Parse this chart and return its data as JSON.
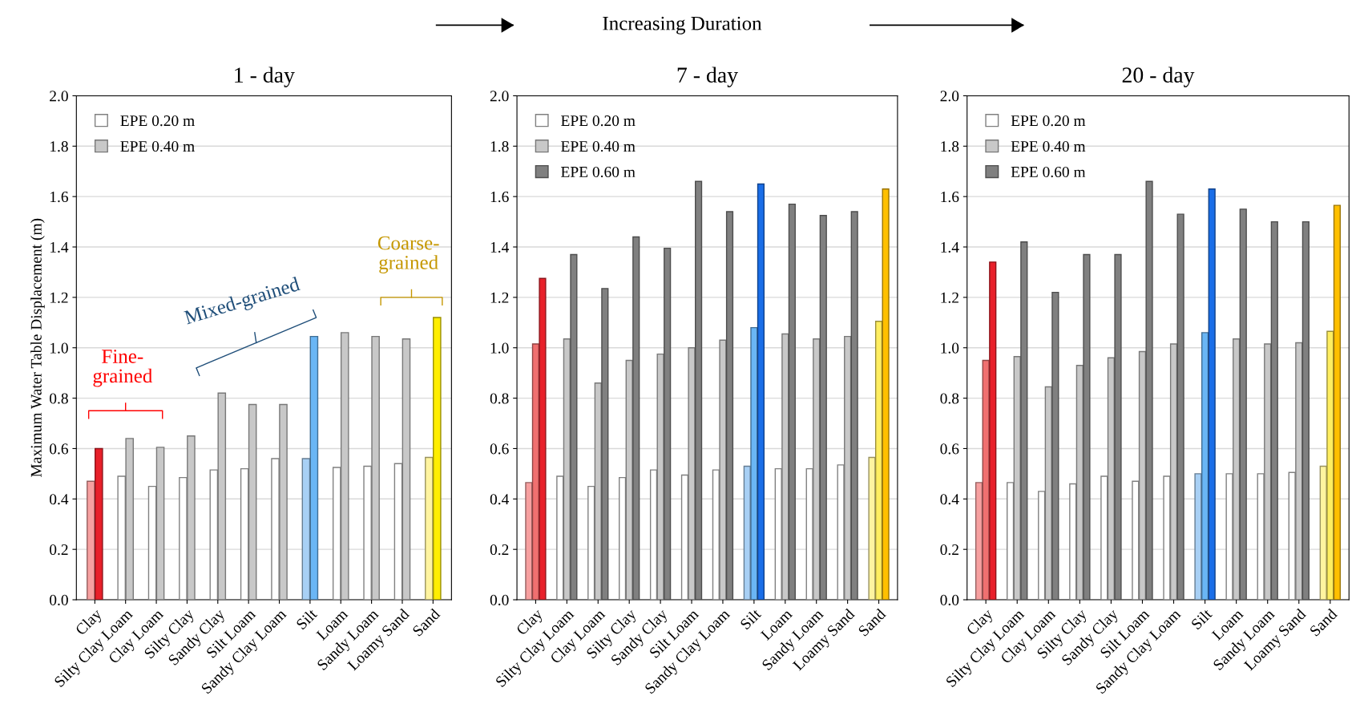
{
  "chart_data": [
    {
      "type": "bar",
      "title": "1 - day",
      "ylabel": "Maximum Water Table Displacement (m)",
      "annotations": [
        "Increasing Duration",
        "Fine-\ngrained",
        "Mixed-grained",
        "Coarse-\ngrained"
      ],
      "categories": [
        "Clay",
        "Silty Clay Loam",
        "Clay Loam",
        "Silty Clay",
        "Sandy Clay",
        "Silt Loam",
        "Sandy Clay Loam",
        "Silt",
        "Loam",
        "Sandy Loam",
        "Loamy Sand",
        "Sand"
      ],
      "series": [
        {
          "name": "EPE 0.20 m",
          "color": "#ffffff",
          "colors": [
            "#f7a0a0",
            "#ffffff",
            "#ffffff",
            "#ffffff",
            "#ffffff",
            "#ffffff",
            "#ffffff",
            "#a8d0f5",
            "#ffffff",
            "#ffffff",
            "#ffffff",
            "#fff4a0"
          ],
          "values": [
            0.47,
            0.49,
            0.45,
            0.485,
            0.515,
            0.52,
            0.56,
            0.56,
            0.525,
            0.53,
            0.54,
            0.565
          ]
        },
        {
          "name": "EPE 0.40 m",
          "color": "#c8c8c8",
          "colors": [
            "#e8202a",
            "#c8c8c8",
            "#c8c8c8",
            "#c8c8c8",
            "#c8c8c8",
            "#c8c8c8",
            "#c8c8c8",
            "#6ab6f5",
            "#c8c8c8",
            "#c8c8c8",
            "#c8c8c8",
            "#ffee00"
          ],
          "values": [
            0.6,
            0.64,
            0.605,
            0.65,
            0.82,
            0.775,
            0.775,
            1.045,
            1.06,
            1.045,
            1.035,
            1.12
          ]
        }
      ],
      "ylim": [
        0,
        2.0
      ],
      "yticks": [
        {
          "value": 0,
          "label": "0.0"
        },
        0.2,
        0.4,
        0.6,
        0.8,
        {
          "value": 1,
          "label": "1.0"
        },
        1.2,
        1.4,
        1.6,
        1.8,
        {
          "value": 2,
          "label": "2.0"
        }
      ],
      "grid": "y",
      "legend": "top left"
    },
    {
      "type": "bar",
      "title": "7 - day",
      "categories": [
        "Clay",
        "Silty Clay Loam",
        "Clay Loam",
        "Silty Clay",
        "Sandy Clay",
        "Silt Loam",
        "Sandy Clay Loam",
        "Silt",
        "Loam",
        "Sandy Loam",
        "Loamy Sand",
        "Sand"
      ],
      "series": [
        {
          "name": "EPE 0.20 m",
          "color": "#ffffff",
          "colors": [
            "#f7a0a0",
            "#ffffff",
            "#ffffff",
            "#ffffff",
            "#ffffff",
            "#ffffff",
            "#ffffff",
            "#a8d0f5",
            "#ffffff",
            "#ffffff",
            "#ffffff",
            "#fff4a0"
          ],
          "values": [
            0.465,
            0.49,
            0.45,
            0.485,
            0.515,
            0.495,
            0.515,
            0.53,
            0.52,
            0.52,
            0.535,
            0.565
          ]
        },
        {
          "name": "EPE 0.40 m",
          "color": "#c8c8c8",
          "colors": [
            "#f07070",
            "#c8c8c8",
            "#c8c8c8",
            "#c8c8c8",
            "#c8c8c8",
            "#c8c8c8",
            "#c8c8c8",
            "#6ab6f5",
            "#c8c8c8",
            "#c8c8c8",
            "#c8c8c8",
            "#ffee60"
          ],
          "values": [
            1.015,
            1.035,
            0.86,
            0.95,
            0.975,
            1.0,
            1.03,
            1.08,
            1.055,
            1.035,
            1.045,
            1.105
          ]
        },
        {
          "name": "EPE 0.60 m",
          "color": "#808080",
          "colors": [
            "#e8202a",
            "#808080",
            "#808080",
            "#808080",
            "#808080",
            "#808080",
            "#808080",
            "#1a6ee8",
            "#808080",
            "#808080",
            "#808080",
            "#ffc000"
          ],
          "values": [
            1.275,
            1.37,
            1.235,
            1.44,
            1.395,
            1.66,
            1.54,
            1.65,
            1.57,
            1.525,
            1.54,
            1.63
          ]
        }
      ],
      "ylim": [
        0,
        2.0
      ],
      "yticks": [
        {
          "value": 0,
          "label": "0.0"
        },
        0.2,
        0.4,
        0.6,
        0.8,
        {
          "value": 1,
          "label": "1.0"
        },
        1.2,
        1.4,
        1.6,
        1.8,
        {
          "value": 2,
          "label": "2.0"
        }
      ],
      "grid": "y",
      "legend": "top left"
    },
    {
      "type": "bar",
      "title": "20 - day",
      "categories": [
        "Clay",
        "Silty Clay Loam",
        "Clay Loam",
        "Silty Clay",
        "Sandy Clay",
        "Silt Loam",
        "Sandy Clay Loam",
        "Silt",
        "Loam",
        "Sandy Loam",
        "Loamy Sand",
        "Sand"
      ],
      "series": [
        {
          "name": "EPE 0.20 m",
          "color": "#ffffff",
          "colors": [
            "#f7a0a0",
            "#ffffff",
            "#ffffff",
            "#ffffff",
            "#ffffff",
            "#ffffff",
            "#ffffff",
            "#a8d0f5",
            "#ffffff",
            "#ffffff",
            "#ffffff",
            "#fff4a0"
          ],
          "values": [
            0.465,
            0.465,
            0.43,
            0.46,
            0.49,
            0.47,
            0.49,
            0.5,
            0.5,
            0.5,
            0.505,
            0.53
          ]
        },
        {
          "name": "EPE 0.40 m",
          "color": "#c8c8c8",
          "colors": [
            "#f07070",
            "#c8c8c8",
            "#c8c8c8",
            "#c8c8c8",
            "#c8c8c8",
            "#c8c8c8",
            "#c8c8c8",
            "#6ab6f5",
            "#c8c8c8",
            "#c8c8c8",
            "#c8c8c8",
            "#ffee60"
          ],
          "values": [
            0.95,
            0.965,
            0.845,
            0.93,
            0.96,
            0.985,
            1.015,
            1.06,
            1.035,
            1.015,
            1.02,
            1.065
          ]
        },
        {
          "name": "EPE 0.60 m",
          "color": "#808080",
          "colors": [
            "#e8202a",
            "#808080",
            "#808080",
            "#808080",
            "#808080",
            "#808080",
            "#808080",
            "#1a6ee8",
            "#808080",
            "#808080",
            "#808080",
            "#ffc000"
          ],
          "values": [
            1.34,
            1.42,
            1.22,
            1.37,
            1.37,
            1.66,
            1.53,
            1.63,
            1.55,
            1.5,
            1.5,
            1.565
          ]
        }
      ],
      "ylim": [
        0,
        2.0
      ],
      "yticks": [
        {
          "value": 0,
          "label": "0.0"
        },
        0.2,
        0.4,
        0.6,
        0.8,
        {
          "value": 1,
          "label": "1.0"
        },
        1.2,
        1.4,
        1.6,
        1.8,
        {
          "value": 2,
          "label": "2.0"
        }
      ],
      "grid": "y",
      "legend": "top left"
    }
  ]
}
